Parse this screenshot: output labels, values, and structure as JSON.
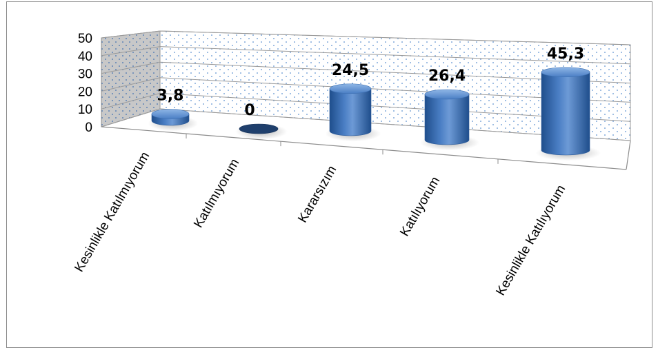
{
  "chart_data": {
    "type": "bar",
    "style": "3d-cylinder",
    "categories": [
      "Kesinlikle Katılmıyorum",
      "Katılmıyorum",
      "Kararsızım",
      "Katılıyorum",
      "Kesinlikle Katılıyorum"
    ],
    "values": [
      3.8,
      0,
      24.5,
      26.4,
      45.3
    ],
    "data_labels": [
      "3,8",
      "0",
      "24,5",
      "26,4",
      "45,3"
    ],
    "yticks": [
      "0",
      "10",
      "20",
      "30",
      "40",
      "50"
    ],
    "ylim": [
      0,
      50
    ],
    "grid": true,
    "legend": "none",
    "title": "",
    "xlabel": "",
    "ylabel": "",
    "colors": {
      "bar": "#4a7ec4",
      "bar_dark": "#1f4e8c",
      "bar_light": "#8fb6e6",
      "wall_side": "#c8c8c8",
      "wall_back": "#ffffff",
      "dots": "#5b8fd0",
      "grid": "#9a9a9a"
    }
  }
}
